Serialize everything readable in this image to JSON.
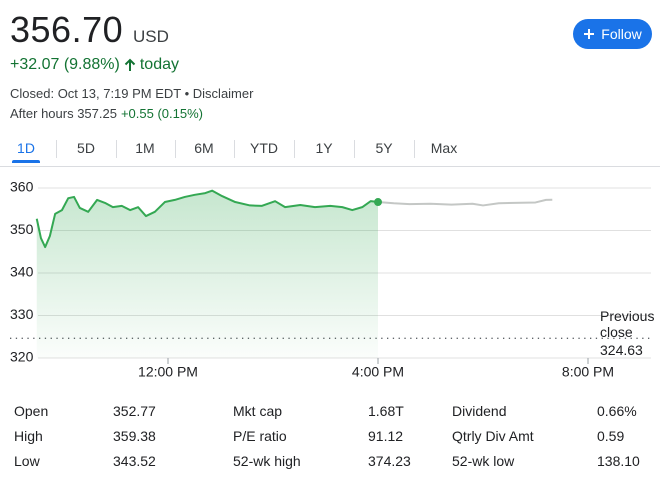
{
  "header": {
    "price": "356.70",
    "currency": "USD",
    "change": "+32.07 (9.88%)",
    "period": "today",
    "status": "Closed: Oct 13, 7:19 PM EDT • Disclaimer",
    "after_hours": "After hours 357.25",
    "after_hours_change": "+0.55 (0.15%)"
  },
  "follow_button": "Follow",
  "tabs": [
    "1D",
    "5D",
    "1M",
    "6M",
    "YTD",
    "1Y",
    "5Y",
    "Max"
  ],
  "selected_tab": 0,
  "chart_data": {
    "type": "line",
    "xlim": [
      9.5,
      21.2
    ],
    "xticks": [
      {
        "value": 12,
        "label": "12:00 PM"
      },
      {
        "value": 16,
        "label": "4:00 PM"
      },
      {
        "value": 20,
        "label": "8:00 PM"
      }
    ],
    "ylim": [
      320,
      360
    ],
    "yticks": [
      320,
      330,
      340,
      350,
      360
    ],
    "grid": true,
    "reference_line": {
      "label": "Previous close",
      "value": 324.63
    },
    "series": [
      {
        "color": "#34a853",
        "fill": true,
        "x": [
          9.5,
          9.58,
          9.66,
          9.75,
          9.85,
          9.98,
          10.1,
          10.21,
          10.32,
          10.48,
          10.65,
          10.8,
          10.95,
          11.12,
          11.28,
          11.43,
          11.58,
          11.75,
          11.94,
          12.13,
          12.32,
          12.51,
          12.71,
          12.84,
          13.03,
          13.28,
          13.56,
          13.79,
          14.04,
          14.23,
          14.52,
          14.8,
          15.09,
          15.32,
          15.51,
          15.7,
          15.86,
          16.0
        ],
        "values": [
          352.77,
          348.2,
          346.1,
          348.7,
          353.9,
          354.8,
          357.6,
          357.9,
          355.3,
          354.4,
          357.2,
          356.5,
          355.5,
          355.8,
          354.8,
          355.5,
          353.4,
          354.4,
          356.7,
          357.2,
          357.9,
          358.4,
          358.8,
          359.38,
          358.1,
          356.7,
          355.9,
          355.8,
          356.9,
          355.5,
          356.0,
          355.5,
          355.8,
          355.5,
          354.8,
          355.5,
          356.9,
          356.7
        ]
      },
      {
        "color": "#c4c7c5",
        "fill": false,
        "x": [
          16.0,
          16.3,
          16.6,
          17.0,
          17.4,
          17.8,
          18.0,
          18.3,
          18.6,
          19.0,
          19.2,
          19.32
        ],
        "values": [
          356.7,
          356.4,
          356.2,
          356.3,
          356.1,
          356.3,
          355.9,
          356.4,
          356.5,
          356.6,
          357.2,
          357.25
        ]
      }
    ]
  },
  "stats": [
    [
      [
        "Open",
        "352.77"
      ],
      [
        "High",
        "359.38"
      ],
      [
        "Low",
        "343.52"
      ]
    ],
    [
      [
        "Mkt cap",
        "1.68T"
      ],
      [
        "P/E ratio",
        "91.12"
      ],
      [
        "52-wk high",
        "374.23"
      ]
    ],
    [
      [
        "Dividend",
        "0.66%"
      ],
      [
        "Qtrly Div Amt",
        "0.59"
      ],
      [
        "52-wk low",
        "138.10"
      ]
    ]
  ]
}
